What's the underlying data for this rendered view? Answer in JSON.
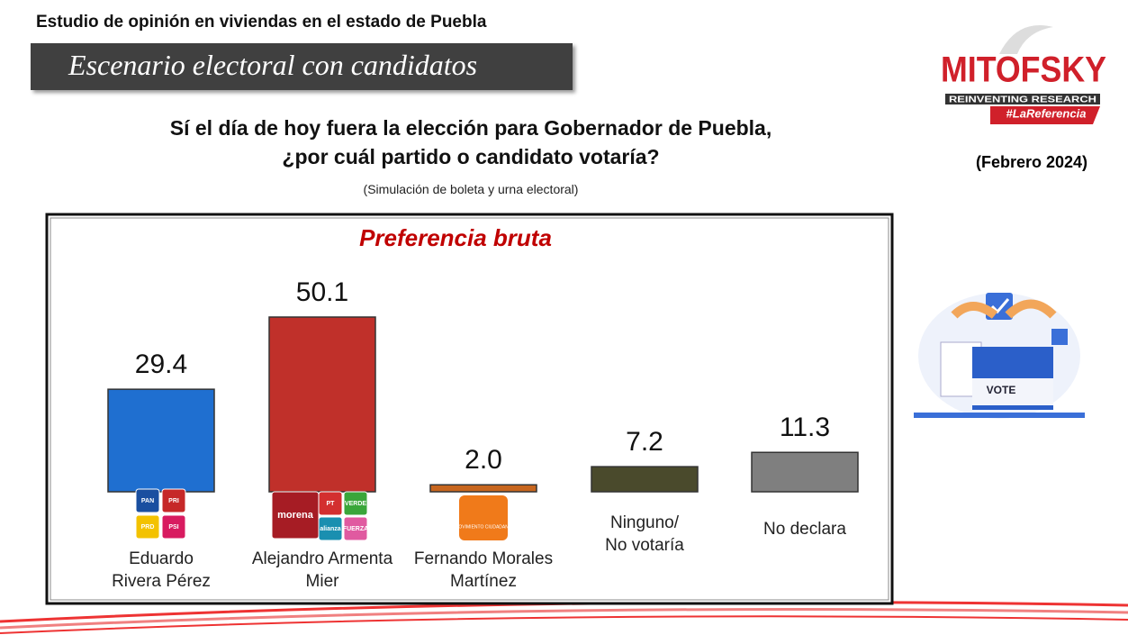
{
  "header": "Estudio de opinión en viviendas en el estado de Puebla",
  "banner": "Escenario electoral con candidatos",
  "question": [
    "Sí el día de hoy fuera la elección para Gobernador de Puebla,",
    "¿por cuál partido o candidato votaría?"
  ],
  "note": "(Simulación de boleta y urna electoral)",
  "logo": {
    "name": "MITOFSKY",
    "tagline": "REINVENTING RESEARCH",
    "hashtag": "#LaReferencia"
  },
  "date": "(Febrero 2024)",
  "illustration_text": "VOTE",
  "party_logos": [
    [
      "PAN",
      "PRI",
      "PRD",
      "PSI"
    ],
    [
      "morena",
      "PT",
      "VERDE",
      "alianza",
      "FUERZA"
    ],
    [
      "MOVIMIENTO CIUDADANO"
    ]
  ],
  "chart_data": {
    "type": "bar",
    "title": "Preferencia bruta",
    "categories": [
      "Eduardo\nRivera Pérez",
      "Alejandro Armenta\nMier",
      "Fernando Morales\nMartínez",
      "Ninguno/\nNo votaría",
      "No declara"
    ],
    "values": [
      29.4,
      50.1,
      2.0,
      7.2,
      11.3
    ],
    "value_labels": [
      "29.4",
      "50.1",
      "2.0",
      "7.2",
      "11.3"
    ],
    "colors": [
      "#1f6fd0",
      "#c0302a",
      "#c8661e",
      "#4a4a2c",
      "#7f7f7f"
    ]
  }
}
